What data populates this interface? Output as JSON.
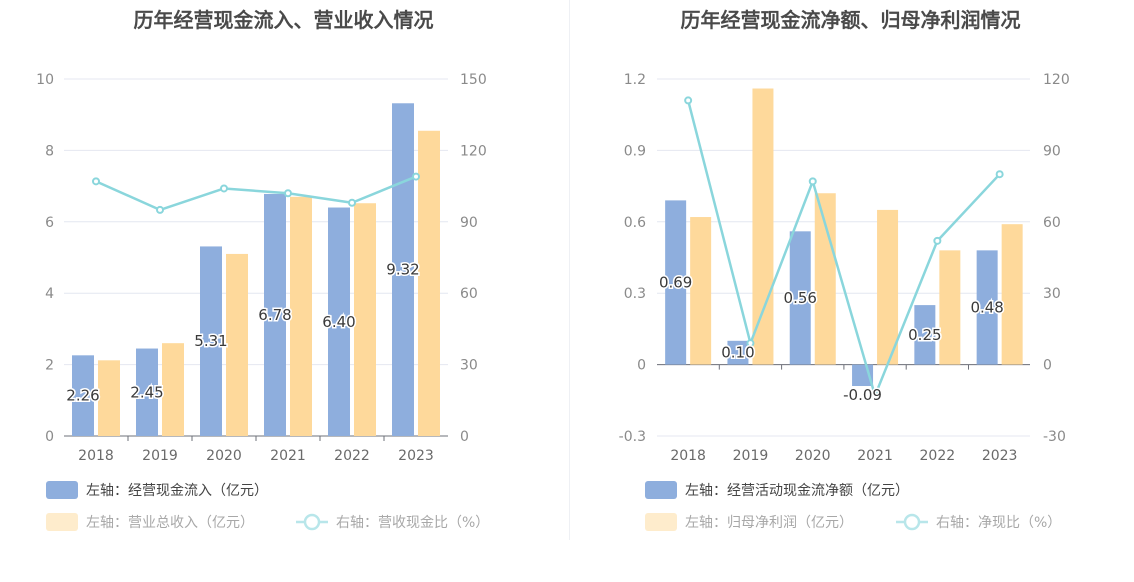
{
  "chart_data": [
    {
      "type": "bar",
      "title": "历年经营现金流入、营业收入情况",
      "categories": [
        "2018",
        "2019",
        "2020",
        "2021",
        "2022",
        "2023"
      ],
      "left_axis": {
        "min": 0,
        "max": 10,
        "ticks": [
          "0",
          "2",
          "4",
          "6",
          "8",
          "10"
        ]
      },
      "right_axis": {
        "min": 0,
        "max": 150,
        "ticks": [
          "0",
          "30",
          "60",
          "90",
          "120",
          "150"
        ]
      },
      "series": [
        {
          "name": "左轴：经营现金流入（亿元）",
          "kind": "bar",
          "axis": "left",
          "color": "#8eaedd",
          "values": [
            2.26,
            2.45,
            5.31,
            6.78,
            6.4,
            9.32
          ],
          "labels": [
            "2.26",
            "2.45",
            "5.31",
            "6.78",
            "6.40",
            "9.32"
          ]
        },
        {
          "name": "左轴：营业总收入（亿元）",
          "kind": "bar",
          "axis": "left",
          "color": "#fed99b",
          "values": [
            2.12,
            2.6,
            5.1,
            6.7,
            6.52,
            8.55
          ]
        },
        {
          "name": "右轴：营收现金比（%）",
          "kind": "line",
          "axis": "right",
          "color": "#8ad6dc",
          "values": [
            107,
            95,
            104,
            102,
            98,
            109
          ]
        }
      ]
    },
    {
      "type": "bar",
      "title": "历年经营现金流净额、归母净利润情况",
      "categories": [
        "2018",
        "2019",
        "2020",
        "2021",
        "2022",
        "2023"
      ],
      "left_axis": {
        "min": -0.3,
        "max": 1.2,
        "ticks": [
          "-0.3",
          "0",
          "0.3",
          "0.6",
          "0.9",
          "1.2"
        ]
      },
      "right_axis": {
        "min": -30,
        "max": 120,
        "ticks": [
          "-30",
          "0",
          "30",
          "60",
          "90",
          "120"
        ]
      },
      "series": [
        {
          "name": "左轴：经营活动现金流净额（亿元）",
          "kind": "bar",
          "axis": "left",
          "color": "#8eaedd",
          "values": [
            0.69,
            0.1,
            0.56,
            -0.09,
            0.25,
            0.48
          ],
          "labels": [
            "0.69",
            "0.10",
            "0.56",
            "-0.09",
            "0.25",
            "0.48"
          ]
        },
        {
          "name": "左轴：归母净利润（亿元）",
          "kind": "bar",
          "axis": "left",
          "color": "#fed99b",
          "values": [
            0.62,
            1.16,
            0.72,
            0.65,
            0.48,
            0.59
          ]
        },
        {
          "name": "右轴：净现比（%）",
          "kind": "line",
          "axis": "right",
          "color": "#8ad6dc",
          "values": [
            111,
            9,
            77,
            -13,
            52,
            80
          ]
        }
      ]
    }
  ]
}
